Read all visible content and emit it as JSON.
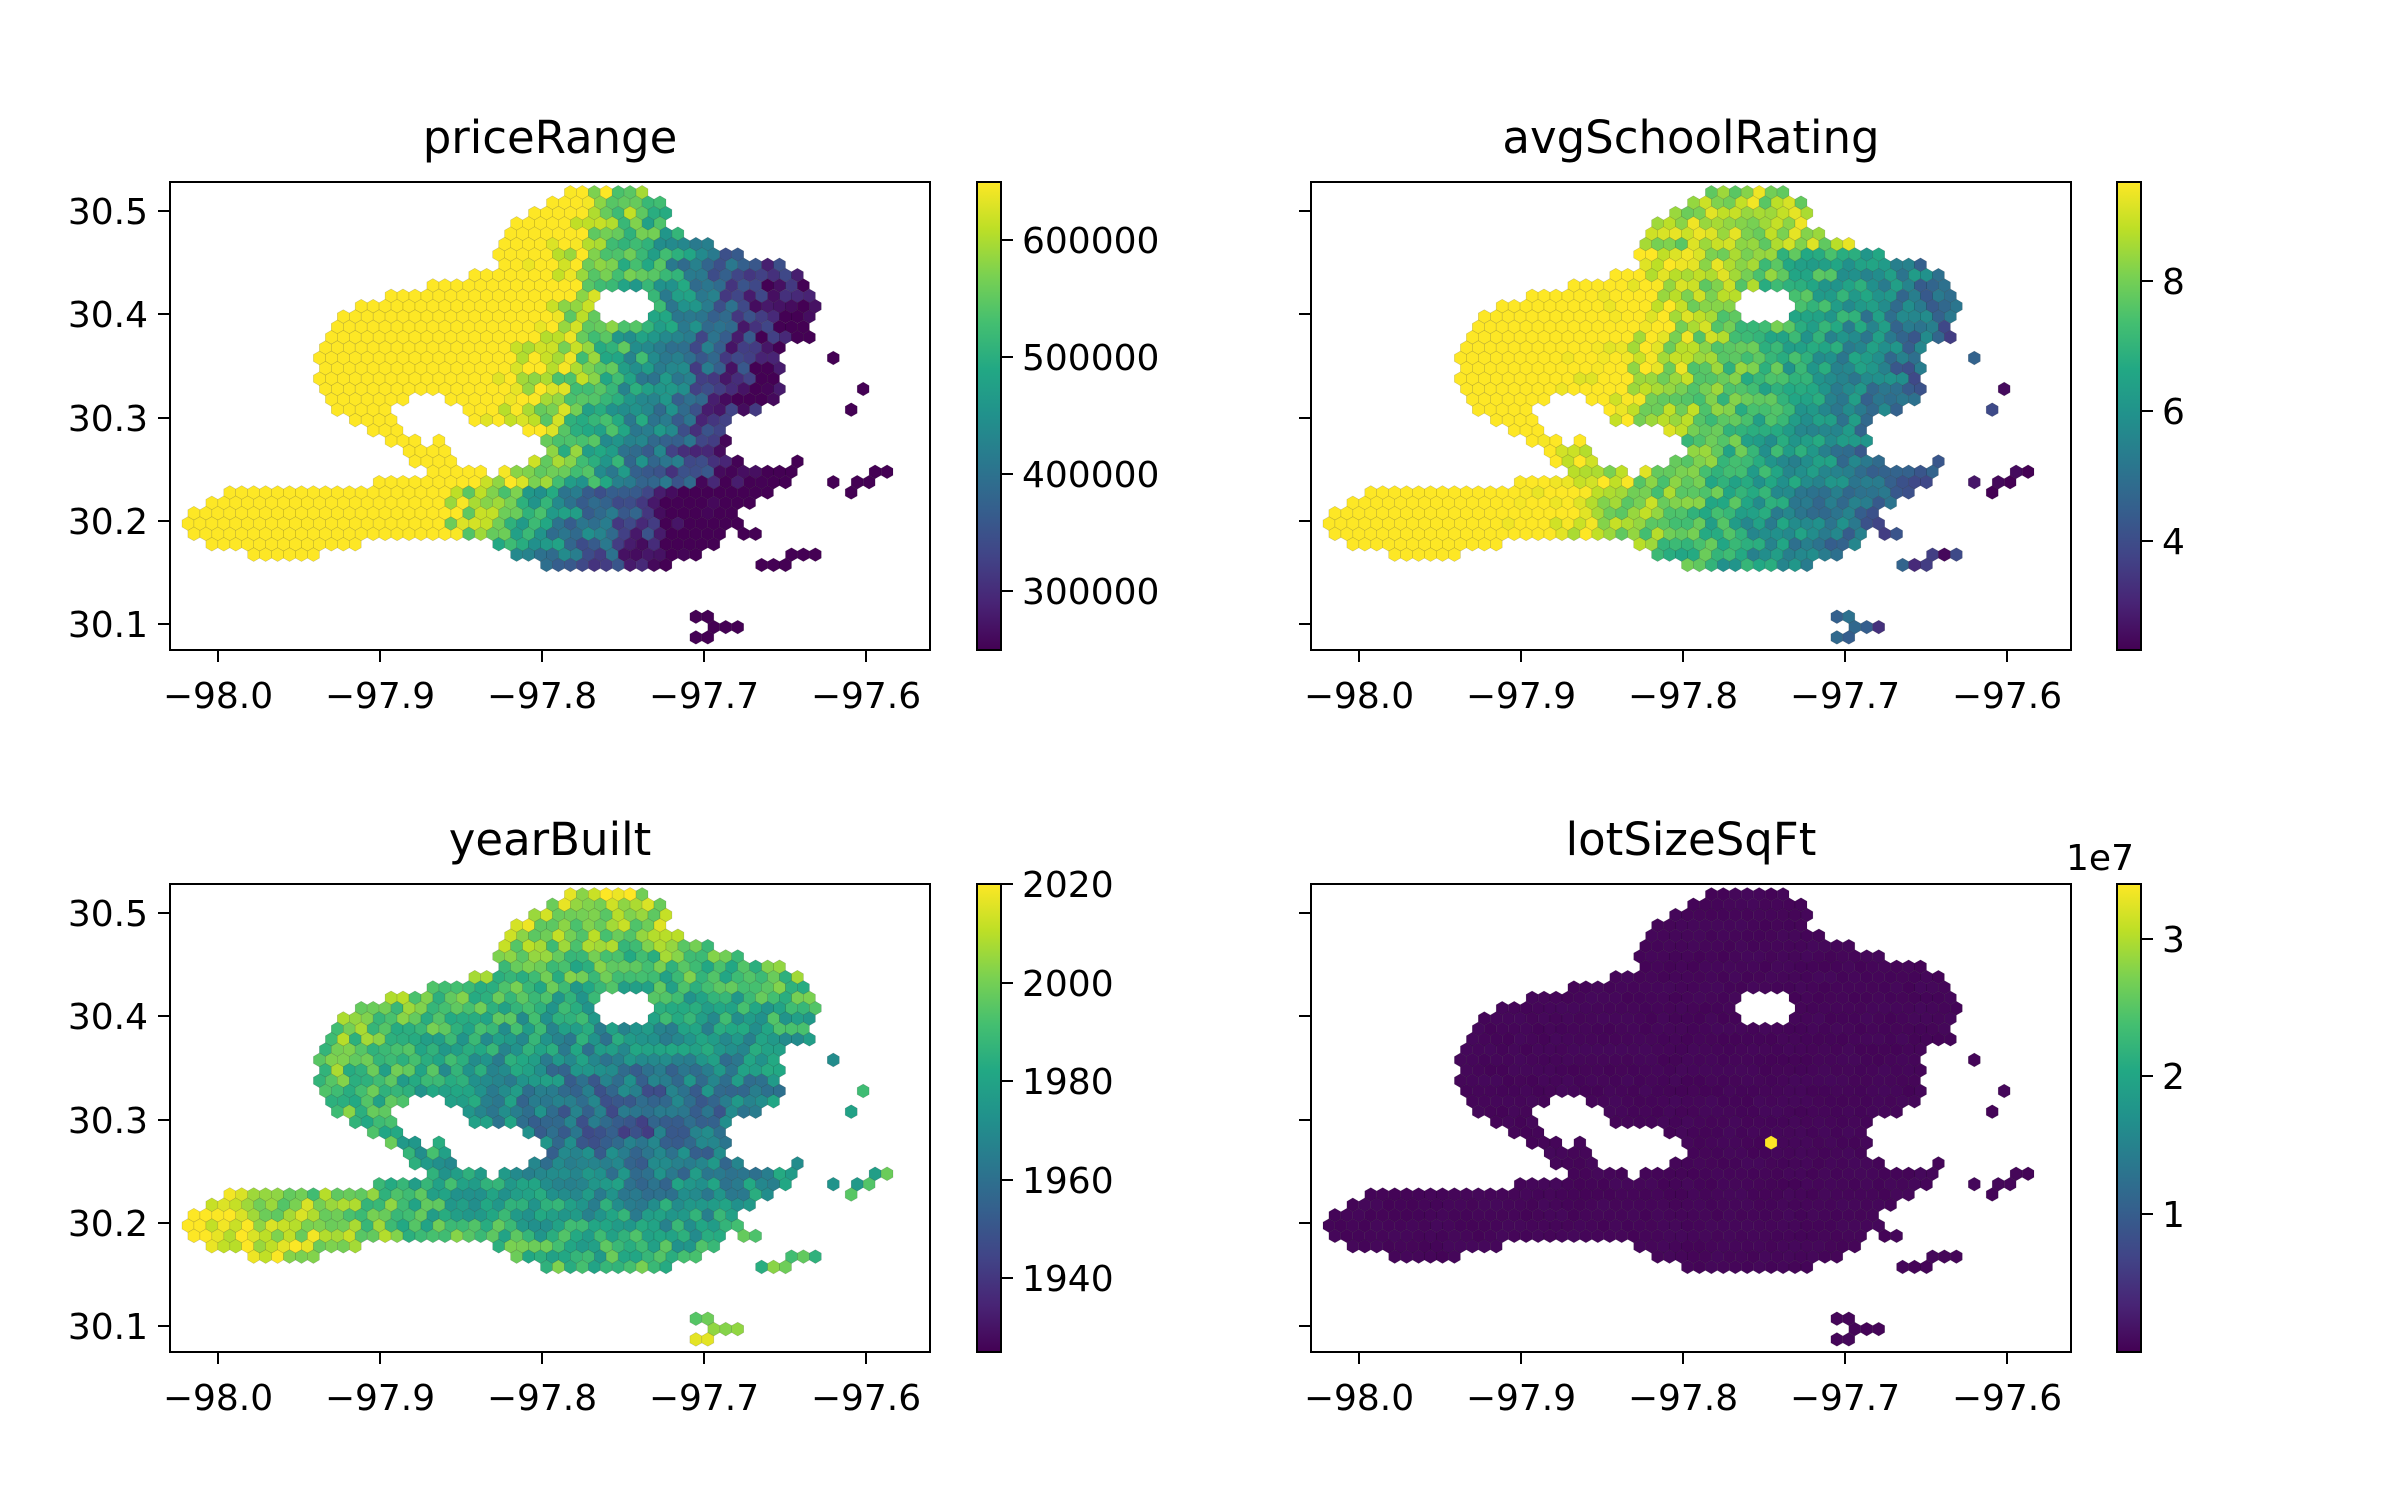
{
  "chart_data": [
    {
      "type": "hexbin",
      "title": "priceRange",
      "xlabel": "",
      "ylabel": "",
      "xlim": [
        -98.03,
        -97.56
      ],
      "ylim": [
        30.075,
        30.53
      ],
      "xticks": [
        -98.0,
        -97.9,
        -97.8,
        -97.7,
        -97.6
      ],
      "xtick_labels": [
        "−98.0",
        "−97.9",
        "−97.8",
        "−97.7",
        "−97.6"
      ],
      "yticks": [
        30.1,
        30.2,
        30.3,
        30.4,
        30.5
      ],
      "ytick_labels": [
        "30.1",
        "30.2",
        "30.3",
        "30.4",
        "30.5"
      ],
      "show_ytick_labels": true,
      "grid": false,
      "colormap": "viridis",
      "colorbar": {
        "range": [
          250000,
          650000
        ],
        "ticks": [
          300000,
          400000,
          500000,
          600000
        ],
        "tick_labels": [
          "300000",
          "400000",
          "500000",
          "600000"
        ],
        "offset_label": ""
      },
      "variable": "price"
    },
    {
      "type": "hexbin",
      "title": "avgSchoolRating",
      "xlabel": "",
      "ylabel": "",
      "xlim": [
        -98.03,
        -97.56
      ],
      "ylim": [
        30.075,
        30.53
      ],
      "xticks": [
        -98.0,
        -97.9,
        -97.8,
        -97.7,
        -97.6
      ],
      "xtick_labels": [
        "−98.0",
        "−97.9",
        "−97.8",
        "−97.7",
        "−97.6"
      ],
      "yticks": [
        30.1,
        30.2,
        30.3,
        30.4,
        30.5
      ],
      "ytick_labels": [
        "30.1",
        "30.2",
        "30.3",
        "30.4",
        "30.5"
      ],
      "show_ytick_labels": false,
      "grid": false,
      "colormap": "viridis",
      "colorbar": {
        "range": [
          2.3,
          9.5
        ],
        "ticks": [
          4,
          6,
          8
        ],
        "tick_labels": [
          "4",
          "6",
          "8"
        ],
        "offset_label": ""
      },
      "variable": "school"
    },
    {
      "type": "hexbin",
      "title": "yearBuilt",
      "xlabel": "",
      "ylabel": "",
      "xlim": [
        -98.03,
        -97.56
      ],
      "ylim": [
        30.075,
        30.53
      ],
      "xticks": [
        -98.0,
        -97.9,
        -97.8,
        -97.7,
        -97.6
      ],
      "xtick_labels": [
        "−98.0",
        "−97.9",
        "−97.8",
        "−97.7",
        "−97.6"
      ],
      "yticks": [
        30.1,
        30.2,
        30.3,
        30.4,
        30.5
      ],
      "ytick_labels": [
        "30.1",
        "30.2",
        "30.3",
        "30.4",
        "30.5"
      ],
      "show_ytick_labels": true,
      "grid": false,
      "colormap": "viridis",
      "colorbar": {
        "range": [
          1925,
          2020
        ],
        "ticks": [
          1940,
          1960,
          1980,
          2000,
          2020
        ],
        "tick_labels": [
          "1940",
          "1960",
          "1980",
          "2000",
          "2020"
        ],
        "offset_label": ""
      },
      "variable": "year"
    },
    {
      "type": "hexbin",
      "title": "lotSizeSqFt",
      "xlabel": "",
      "ylabel": "",
      "xlim": [
        -98.03,
        -97.56
      ],
      "ylim": [
        30.075,
        30.53
      ],
      "xticks": [
        -98.0,
        -97.9,
        -97.8,
        -97.7,
        -97.6
      ],
      "xtick_labels": [
        "−98.0",
        "−97.9",
        "−97.8",
        "−97.7",
        "−97.6"
      ],
      "yticks": [
        30.1,
        30.2,
        30.3,
        30.4,
        30.5
      ],
      "ytick_labels": [
        "30.1",
        "30.2",
        "30.3",
        "30.4",
        "30.5"
      ],
      "show_ytick_labels": false,
      "grid": false,
      "colormap": "viridis",
      "colorbar": {
        "range": [
          0,
          34000000
        ],
        "ticks": [
          10000000,
          20000000,
          30000000
        ],
        "tick_labels": [
          "1",
          "2",
          "3"
        ],
        "offset_label": "1e7"
      },
      "variable": "lot",
      "outlier": {
        "x": -97.745,
        "y": 30.28,
        "value": 34000000
      }
    }
  ]
}
